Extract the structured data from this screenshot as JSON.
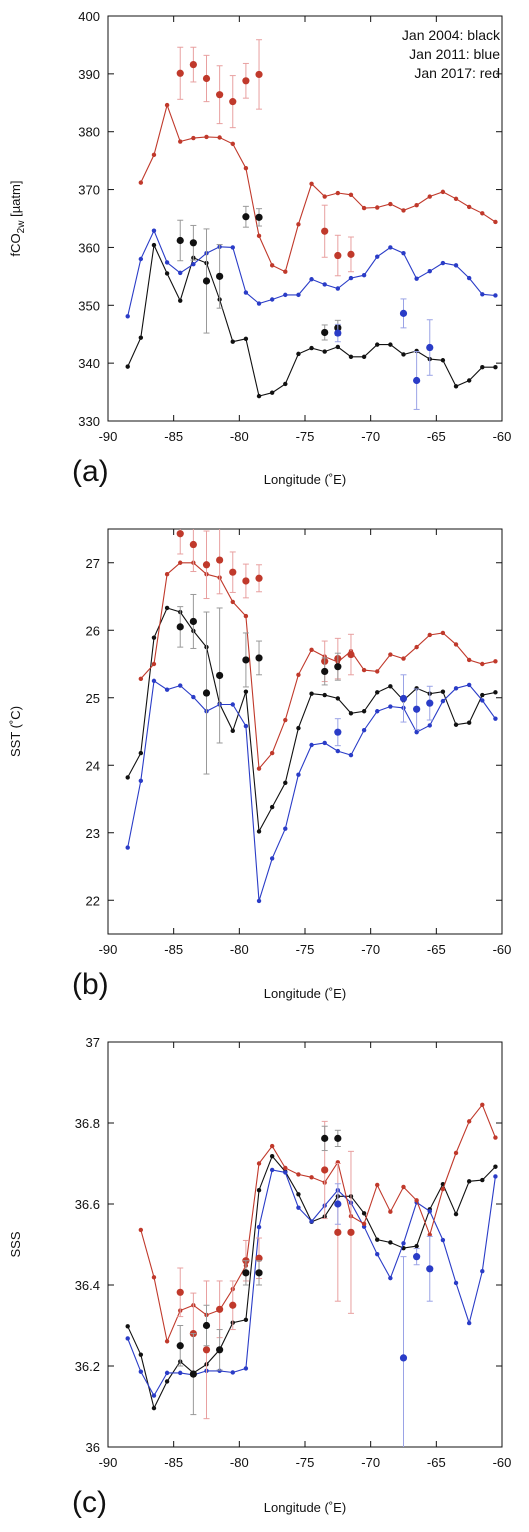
{
  "colors": {
    "black": "#111111",
    "blue": "#2a3cc7",
    "red": "#c0392b",
    "errbar_red": "#e8a0a0",
    "errbar_blue": "#9aa3e6",
    "errbar_black": "#999999"
  },
  "legend": [
    "Jan 2004: black",
    "Jan 2011: blue",
    "Jan 2017: red"
  ],
  "chart_data": [
    {
      "type": "line",
      "panel_label": "(a)",
      "xlabel": "Longitude (˚E)",
      "ylabel_main": "fCO",
      "ylabel_sub": "2w",
      "ylabel_unit": " [µatm]",
      "xlim": [
        -90,
        -60
      ],
      "ylim": [
        330,
        400
      ],
      "xticks": [
        -90,
        -85,
        -80,
        -75,
        -70,
        -65,
        -60
      ],
      "yticks": [
        330,
        340,
        350,
        360,
        370,
        380,
        390,
        400
      ],
      "lines": [
        {
          "color": "black",
          "x": [
            -88.5,
            -87.5,
            -86.5,
            -85.5,
            -84.5,
            -83.5,
            -82.5,
            -81.5,
            -80.5,
            -79.5,
            -78.5,
            -77.5,
            -76.5,
            -75.5,
            -74.5,
            -73.5,
            -72.5,
            -71.5,
            -70.5,
            -69.5,
            -68.5,
            -67.5,
            -66.5,
            -65.5,
            -64.5,
            -63.5,
            -62.5,
            -61.5,
            -60.5
          ],
          "y": [
            339.4,
            344.4,
            360.4,
            355.5,
            350.8,
            358.2,
            357.3,
            351.0,
            343.7,
            344.2,
            334.3,
            334.9,
            336.4,
            341.6,
            342.6,
            342.0,
            342.8,
            341.1,
            341.1,
            343.2,
            343.2,
            341.5,
            342.1,
            340.7,
            340.5,
            336.0,
            337.0,
            339.3,
            339.3
          ]
        },
        {
          "color": "blue",
          "x": [
            -88.5,
            -87.5,
            -86.5,
            -85.5,
            -84.5,
            -83.5,
            -82.5,
            -81.5,
            -80.5,
            -79.5,
            -78.5,
            -77.5,
            -76.5,
            -75.5,
            -74.5,
            -73.5,
            -72.5,
            -71.5,
            -70.5,
            -69.5,
            -68.5,
            -67.5,
            -66.5,
            -65.5,
            -64.5,
            -63.5,
            -62.5,
            -61.5,
            -60.5
          ],
          "y": [
            348.1,
            358.0,
            362.9,
            357.4,
            355.6,
            357.1,
            359.0,
            360.1,
            360.0,
            352.2,
            350.3,
            351.0,
            351.8,
            351.8,
            354.5,
            353.6,
            352.9,
            354.7,
            355.2,
            358.4,
            360.0,
            359.0,
            354.6,
            355.9,
            357.3,
            356.9,
            354.7,
            351.9,
            351.7
          ]
        },
        {
          "color": "red",
          "x": [
            -87.5,
            -86.5,
            -85.5,
            -84.5,
            -83.5,
            -82.5,
            -81.5,
            -80.5,
            -79.5,
            -78.5,
            -77.5,
            -76.5,
            -75.5,
            -74.5,
            -73.5,
            -72.5,
            -71.5,
            -70.5,
            -69.5,
            -68.5,
            -67.5,
            -66.5,
            -65.5,
            -64.5,
            -63.5,
            -62.5,
            -61.5,
            -60.5
          ],
          "y": [
            371.2,
            376.0,
            384.6,
            378.3,
            378.9,
            379.1,
            379.0,
            377.9,
            373.7,
            362.0,
            356.9,
            355.8,
            364.0,
            371.0,
            368.8,
            369.4,
            369.1,
            366.8,
            366.9,
            367.5,
            366.4,
            367.3,
            368.8,
            369.6,
            368.4,
            367.0,
            365.9,
            364.4
          ]
        }
      ],
      "points": [
        {
          "color": "red",
          "x": [
            -84.5,
            -83.5,
            -82.5,
            -81.5,
            -80.5,
            -79.5,
            -78.5,
            -73.5,
            -72.5,
            -71.5
          ],
          "y": [
            390.1,
            391.6,
            389.2,
            386.4,
            385.2,
            388.8,
            389.9,
            362.8,
            358.6,
            358.8
          ],
          "err": [
            4.5,
            3.0,
            4.0,
            5.0,
            4.5,
            3.0,
            6.0,
            4.5,
            3.5,
            3.0
          ]
        },
        {
          "color": "black",
          "x": [
            -84.5,
            -83.5,
            -82.5,
            -81.5,
            -79.5,
            -78.5,
            -73.5,
            -72.5
          ],
          "y": [
            361.2,
            360.8,
            354.2,
            355.0,
            365.3,
            365.2,
            345.3,
            346.1
          ],
          "err": [
            3.5,
            3.0,
            9.0,
            5.5,
            1.8,
            1.5,
            1.3,
            1.3
          ]
        },
        {
          "color": "blue",
          "x": [
            -72.5,
            -67.5,
            -66.5,
            -65.5
          ],
          "y": [
            345.2,
            348.6,
            337.0,
            342.7
          ],
          "err": [
            1.5,
            2.5,
            5.0,
            4.8
          ]
        }
      ]
    },
    {
      "type": "line",
      "panel_label": "(b)",
      "xlabel": "Longitude (˚E)",
      "ylabel_main": "SST (˚C)",
      "xlim": [
        -90,
        -60
      ],
      "ylim": [
        21.5,
        27.5
      ],
      "xticks": [
        -90,
        -85,
        -80,
        -75,
        -70,
        -65,
        -60
      ],
      "yticks": [
        22,
        23,
        24,
        25,
        26,
        27
      ],
      "lines": [
        {
          "color": "black",
          "x": [
            -88.5,
            -87.5,
            -86.5,
            -85.5,
            -84.5,
            -83.5,
            -82.5,
            -81.5,
            -80.5,
            -79.5,
            -78.5,
            -77.5,
            -76.5,
            -75.5,
            -74.5,
            -73.5,
            -72.5,
            -71.5,
            -70.5,
            -69.5,
            -68.5,
            -67.5,
            -66.5,
            -65.5,
            -64.5,
            -63.5,
            -62.5,
            -61.5,
            -60.5
          ],
          "y": [
            23.82,
            24.18,
            25.89,
            26.33,
            26.27,
            25.99,
            25.75,
            24.91,
            24.51,
            25.09,
            23.02,
            23.38,
            23.74,
            24.55,
            25.06,
            25.04,
            24.99,
            24.77,
            24.8,
            25.08,
            25.17,
            24.96,
            25.14,
            25.06,
            25.09,
            24.6,
            24.63,
            25.04,
            25.08
          ]
        },
        {
          "color": "blue",
          "x": [
            -88.5,
            -87.5,
            -86.5,
            -85.5,
            -84.5,
            -83.5,
            -82.5,
            -81.5,
            -80.5,
            -79.5,
            -78.5,
            -77.5,
            -76.5,
            -75.5,
            -74.5,
            -73.5,
            -72.5,
            -71.5,
            -70.5,
            -69.5,
            -68.5,
            -67.5,
            -66.5,
            -65.5,
            -64.5,
            -63.5,
            -62.5,
            -61.5,
            -60.5
          ],
          "y": [
            22.78,
            23.77,
            25.25,
            25.12,
            25.18,
            25.01,
            24.8,
            24.9,
            24.9,
            24.58,
            21.99,
            22.62,
            23.06,
            23.86,
            24.3,
            24.33,
            24.21,
            24.15,
            24.52,
            24.8,
            24.87,
            24.85,
            24.49,
            24.59,
            24.95,
            25.14,
            25.19,
            24.96,
            24.69
          ]
        },
        {
          "color": "red",
          "x": [
            -87.5,
            -86.5,
            -85.5,
            -84.5,
            -83.5,
            -82.5,
            -81.5,
            -80.5,
            -79.5,
            -78.5,
            -77.5,
            -76.5,
            -75.5,
            -74.5,
            -73.5,
            -72.5,
            -71.5,
            -70.5,
            -69.5,
            -68.5,
            -67.5,
            -66.5,
            -65.5,
            -64.5,
            -63.5,
            -62.5,
            -61.5,
            -60.5
          ],
          "y": [
            25.28,
            25.5,
            26.83,
            27.0,
            27.0,
            26.83,
            26.78,
            26.42,
            26.21,
            23.95,
            24.18,
            24.67,
            25.34,
            25.71,
            25.61,
            25.53,
            25.69,
            25.41,
            25.39,
            25.64,
            25.58,
            25.75,
            25.93,
            25.96,
            25.79,
            25.56,
            25.5,
            25.54
          ]
        }
      ],
      "points": [
        {
          "color": "red",
          "x": [
            -84.5,
            -83.5,
            -82.5,
            -81.5,
            -80.5,
            -79.5,
            -78.5,
            -73.5,
            -72.5,
            -71.5
          ],
          "y": [
            27.43,
            27.27,
            26.97,
            27.04,
            26.86,
            26.73,
            26.77,
            25.54,
            25.58,
            25.64
          ],
          "err": [
            0.3,
            0.4,
            0.5,
            0.5,
            0.3,
            0.25,
            0.2,
            0.3,
            0.3,
            0.3
          ]
        },
        {
          "color": "black",
          "x": [
            -84.5,
            -83.5,
            -82.5,
            -81.5,
            -79.5,
            -78.5,
            -73.5,
            -72.5
          ],
          "y": [
            26.05,
            26.13,
            25.07,
            25.33,
            25.56,
            25.59,
            25.39,
            25.46
          ],
          "err": [
            0.3,
            0.4,
            1.2,
            1.0,
            0.4,
            0.25,
            0.2,
            0.2
          ]
        },
        {
          "color": "blue",
          "x": [
            -72.5,
            -67.5,
            -66.5,
            -65.5
          ],
          "y": [
            24.49,
            24.99,
            24.83,
            24.92
          ],
          "err": [
            0.2,
            0.35,
            0.3,
            0.25
          ]
        }
      ]
    },
    {
      "type": "line",
      "panel_label": "(c)",
      "xlabel": "Longitude (˚E)",
      "ylabel_main": "SSS",
      "xlim": [
        -90,
        -60
      ],
      "ylim": [
        36,
        37
      ],
      "xticks": [
        -90,
        -85,
        -80,
        -75,
        -70,
        -65,
        -60
      ],
      "yticks": [
        36,
        36.2,
        36.4,
        36.6,
        36.8,
        37
      ],
      "ytick_labels": [
        "36",
        "36.2",
        "36.4",
        "36.6",
        "36.8",
        "37"
      ],
      "lines": [
        {
          "color": "black",
          "x": [
            -88.5,
            -87.5,
            -86.5,
            -85.5,
            -84.5,
            -83.5,
            -82.5,
            -81.5,
            -80.5,
            -79.5,
            -78.5,
            -77.5,
            -76.5,
            -75.5,
            -74.5,
            -73.5,
            -72.5,
            -71.5,
            -70.5,
            -69.5,
            -68.5,
            -67.5,
            -66.5,
            -65.5,
            -64.5,
            -63.5,
            -62.5,
            -61.5,
            -60.5
          ],
          "y": [
            36.298,
            36.228,
            36.096,
            36.162,
            36.211,
            36.183,
            36.204,
            36.24,
            36.307,
            36.314,
            36.634,
            36.718,
            36.68,
            36.624,
            36.556,
            36.569,
            36.619,
            36.619,
            36.577,
            36.512,
            36.505,
            36.491,
            36.496,
            36.587,
            36.649,
            36.575,
            36.656,
            36.659,
            36.692
          ]
        },
        {
          "color": "blue",
          "x": [
            -88.5,
            -87.5,
            -86.5,
            -85.5,
            -84.5,
            -83.5,
            -82.5,
            -81.5,
            -80.5,
            -79.5,
            -78.5,
            -77.5,
            -76.5,
            -75.5,
            -74.5,
            -73.5,
            -72.5,
            -71.5,
            -70.5,
            -69.5,
            -68.5,
            -67.5,
            -66.5,
            -65.5,
            -64.5,
            -63.5,
            -62.5,
            -61.5,
            -60.5
          ],
          "y": [
            36.268,
            36.186,
            36.127,
            36.183,
            36.183,
            36.178,
            36.188,
            36.188,
            36.184,
            36.194,
            36.543,
            36.684,
            36.678,
            36.591,
            36.557,
            36.596,
            36.634,
            36.603,
            36.544,
            36.476,
            36.417,
            36.503,
            36.604,
            36.582,
            36.511,
            36.405,
            36.306,
            36.434,
            36.668
          ]
        },
        {
          "color": "red",
          "x": [
            -87.5,
            -86.5,
            -85.5,
            -84.5,
            -83.5,
            -82.5,
            -81.5,
            -80.5,
            -79.5,
            -78.5,
            -77.5,
            -76.5,
            -75.5,
            -74.5,
            -73.5,
            -72.5,
            -71.5,
            -70.5,
            -69.5,
            -68.5,
            -67.5,
            -66.5,
            -65.5,
            -64.5,
            -63.5,
            -62.5,
            -61.5,
            -60.5
          ],
          "y": [
            36.536,
            36.419,
            36.261,
            36.337,
            36.35,
            36.326,
            36.338,
            36.39,
            36.448,
            36.7,
            36.743,
            36.689,
            36.673,
            36.666,
            36.653,
            36.703,
            36.57,
            36.551,
            36.647,
            36.581,
            36.642,
            36.609,
            36.524,
            36.637,
            36.726,
            36.804,
            36.845,
            36.764
          ]
        }
      ],
      "points": [
        {
          "color": "red",
          "x": [
            -84.5,
            -83.5,
            -82.5,
            -81.5,
            -80.5,
            -79.5,
            -78.5,
            -73.5,
            -72.5,
            -71.5
          ],
          "y": [
            36.382,
            36.28,
            36.24,
            36.34,
            36.35,
            36.46,
            36.466,
            36.684,
            36.53,
            36.53
          ],
          "err": [
            0.06,
            0.1,
            0.17,
            0.07,
            0.06,
            0.05,
            0.05,
            0.12,
            0.17,
            0.2
          ]
        },
        {
          "color": "black",
          "x": [
            -84.5,
            -83.5,
            -82.5,
            -81.5,
            -79.5,
            -78.5,
            -73.5,
            -72.5
          ],
          "y": [
            36.25,
            36.18,
            36.3,
            36.24,
            36.43,
            36.43,
            36.762,
            36.762
          ],
          "err": [
            0.05,
            0.1,
            0.05,
            0.05,
            0.03,
            0.03,
            0.03,
            0.02
          ]
        },
        {
          "color": "blue",
          "x": [
            -72.5,
            -67.5,
            -66.5,
            -65.5
          ],
          "y": [
            36.6,
            36.22,
            36.47,
            36.44
          ],
          "err": [
            0.05,
            0.25,
            0.02,
            0.08
          ]
        }
      ]
    }
  ]
}
